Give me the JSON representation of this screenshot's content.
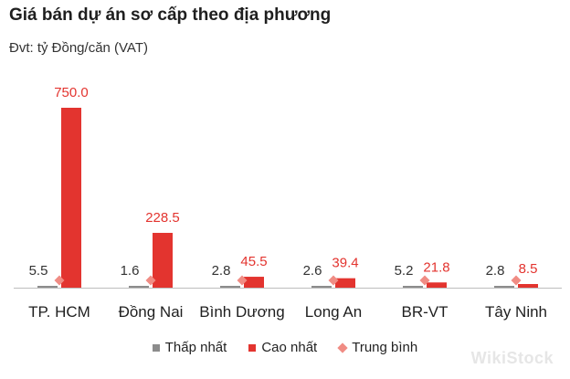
{
  "title": "Giá bán dự án sơ cấp theo địa phương",
  "subtitle": "Đvt: tỷ Đồng/căn (VAT)",
  "watermark": "WikiStock",
  "colors": {
    "low": "#8c8c8c",
    "high": "#e3342f",
    "avg": "#f08c84",
    "label_high": "#e3342f",
    "label_low": "#333333"
  },
  "chart_data": {
    "type": "bar",
    "title": "Giá bán dự án sơ cấp theo địa phương",
    "subtitle": "Đvt: tỷ Đồng/căn (VAT)",
    "categories": [
      "TP. HCM",
      "Đồng Nai",
      "Bình Dương",
      "Long An",
      "BR-VT",
      "Tây Ninh"
    ],
    "series": [
      {
        "name": "Thấp nhất",
        "values": [
          5.5,
          1.6,
          2.8,
          2.6,
          5.2,
          2.8
        ]
      },
      {
        "name": "Cao nhất",
        "values": [
          750.0,
          228.5,
          45.5,
          39.4,
          21.8,
          8.5
        ]
      },
      {
        "name": "Trung bình",
        "values": [
          12,
          10,
          8,
          7,
          8,
          5
        ]
      }
    ],
    "ylim": [
      0,
      750
    ],
    "grid": false,
    "legend": "bottom"
  }
}
